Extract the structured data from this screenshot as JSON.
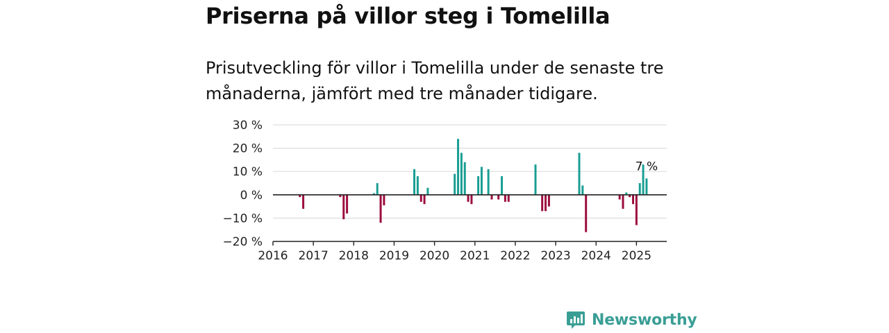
{
  "header": {
    "title": "Priserna på villor steg i Tomelilla",
    "subtitle": "Prisutveckling för villor i Tomelilla under de senaste tre månaderna, jämfört med tre månader tidigare."
  },
  "brand": {
    "name": "Newsworthy",
    "icon": "newsworthy-logo-icon",
    "color": "#3a9e95"
  },
  "colors": {
    "positive": "#1a9e93",
    "negative": "#9c0d3f",
    "grid": "#dddddd",
    "axis": "#222222"
  },
  "chart_data": {
    "type": "bar",
    "title": "Priserna på villor steg i Tomelilla",
    "xlabel": "",
    "ylabel": "",
    "ylim": [
      -20,
      30
    ],
    "yticks": [
      30,
      20,
      10,
      0,
      -10,
      -20
    ],
    "ytick_labels": [
      "30 %",
      "20 %",
      "10 %",
      "0 %",
      "−10 %",
      "−20 %"
    ],
    "xlim": [
      2016,
      2025.75
    ],
    "xticks": [
      2016,
      2017,
      2018,
      2019,
      2020,
      2021,
      2022,
      2023,
      2024,
      2025
    ],
    "xtick_labels": [
      "2016",
      "2017",
      "2018",
      "2019",
      "2020",
      "2021",
      "2022",
      "2023",
      "2024",
      "2025"
    ],
    "grid": true,
    "annotation": {
      "label": "7 %",
      "x": 2025.25,
      "y": 7
    },
    "points": [
      {
        "x": "2016-09",
        "y": -1
      },
      {
        "x": "2016-10",
        "y": -6
      },
      {
        "x": "2017-09",
        "y": -1
      },
      {
        "x": "2017-10",
        "y": -10.5
      },
      {
        "x": "2017-11",
        "y": -8
      },
      {
        "x": "2018-07",
        "y": 0.7
      },
      {
        "x": "2018-08",
        "y": 5
      },
      {
        "x": "2018-09",
        "y": -12
      },
      {
        "x": "2018-10",
        "y": -4.5
      },
      {
        "x": "2019-07",
        "y": 11
      },
      {
        "x": "2019-08",
        "y": 8
      },
      {
        "x": "2019-09",
        "y": -3
      },
      {
        "x": "2019-10",
        "y": -4
      },
      {
        "x": "2019-11",
        "y": 3
      },
      {
        "x": "2020-07",
        "y": 9
      },
      {
        "x": "2020-08",
        "y": 24
      },
      {
        "x": "2020-09",
        "y": 18
      },
      {
        "x": "2020-10",
        "y": 14
      },
      {
        "x": "2020-11",
        "y": -3
      },
      {
        "x": "2020-12",
        "y": -4
      },
      {
        "x": "2021-02",
        "y": 8
      },
      {
        "x": "2021-03",
        "y": 12
      },
      {
        "x": "2021-05",
        "y": 11
      },
      {
        "x": "2021-06",
        "y": -2
      },
      {
        "x": "2021-08",
        "y": -2
      },
      {
        "x": "2021-09",
        "y": 8
      },
      {
        "x": "2021-10",
        "y": -3
      },
      {
        "x": "2021-11",
        "y": -3
      },
      {
        "x": "2022-07",
        "y": 13
      },
      {
        "x": "2022-09",
        "y": -7
      },
      {
        "x": "2022-10",
        "y": -7
      },
      {
        "x": "2022-11",
        "y": -5
      },
      {
        "x": "2023-08",
        "y": 18
      },
      {
        "x": "2023-09",
        "y": 4
      },
      {
        "x": "2023-10",
        "y": -16
      },
      {
        "x": "2024-08",
        "y": -2
      },
      {
        "x": "2024-09",
        "y": -6
      },
      {
        "x": "2024-10",
        "y": 1
      },
      {
        "x": "2024-11",
        "y": -1
      },
      {
        "x": "2024-12",
        "y": -4
      },
      {
        "x": "2025-01",
        "y": -13
      },
      {
        "x": "2025-02",
        "y": 5
      },
      {
        "x": "2025-03",
        "y": 13
      },
      {
        "x": "2025-04",
        "y": 7
      }
    ]
  }
}
